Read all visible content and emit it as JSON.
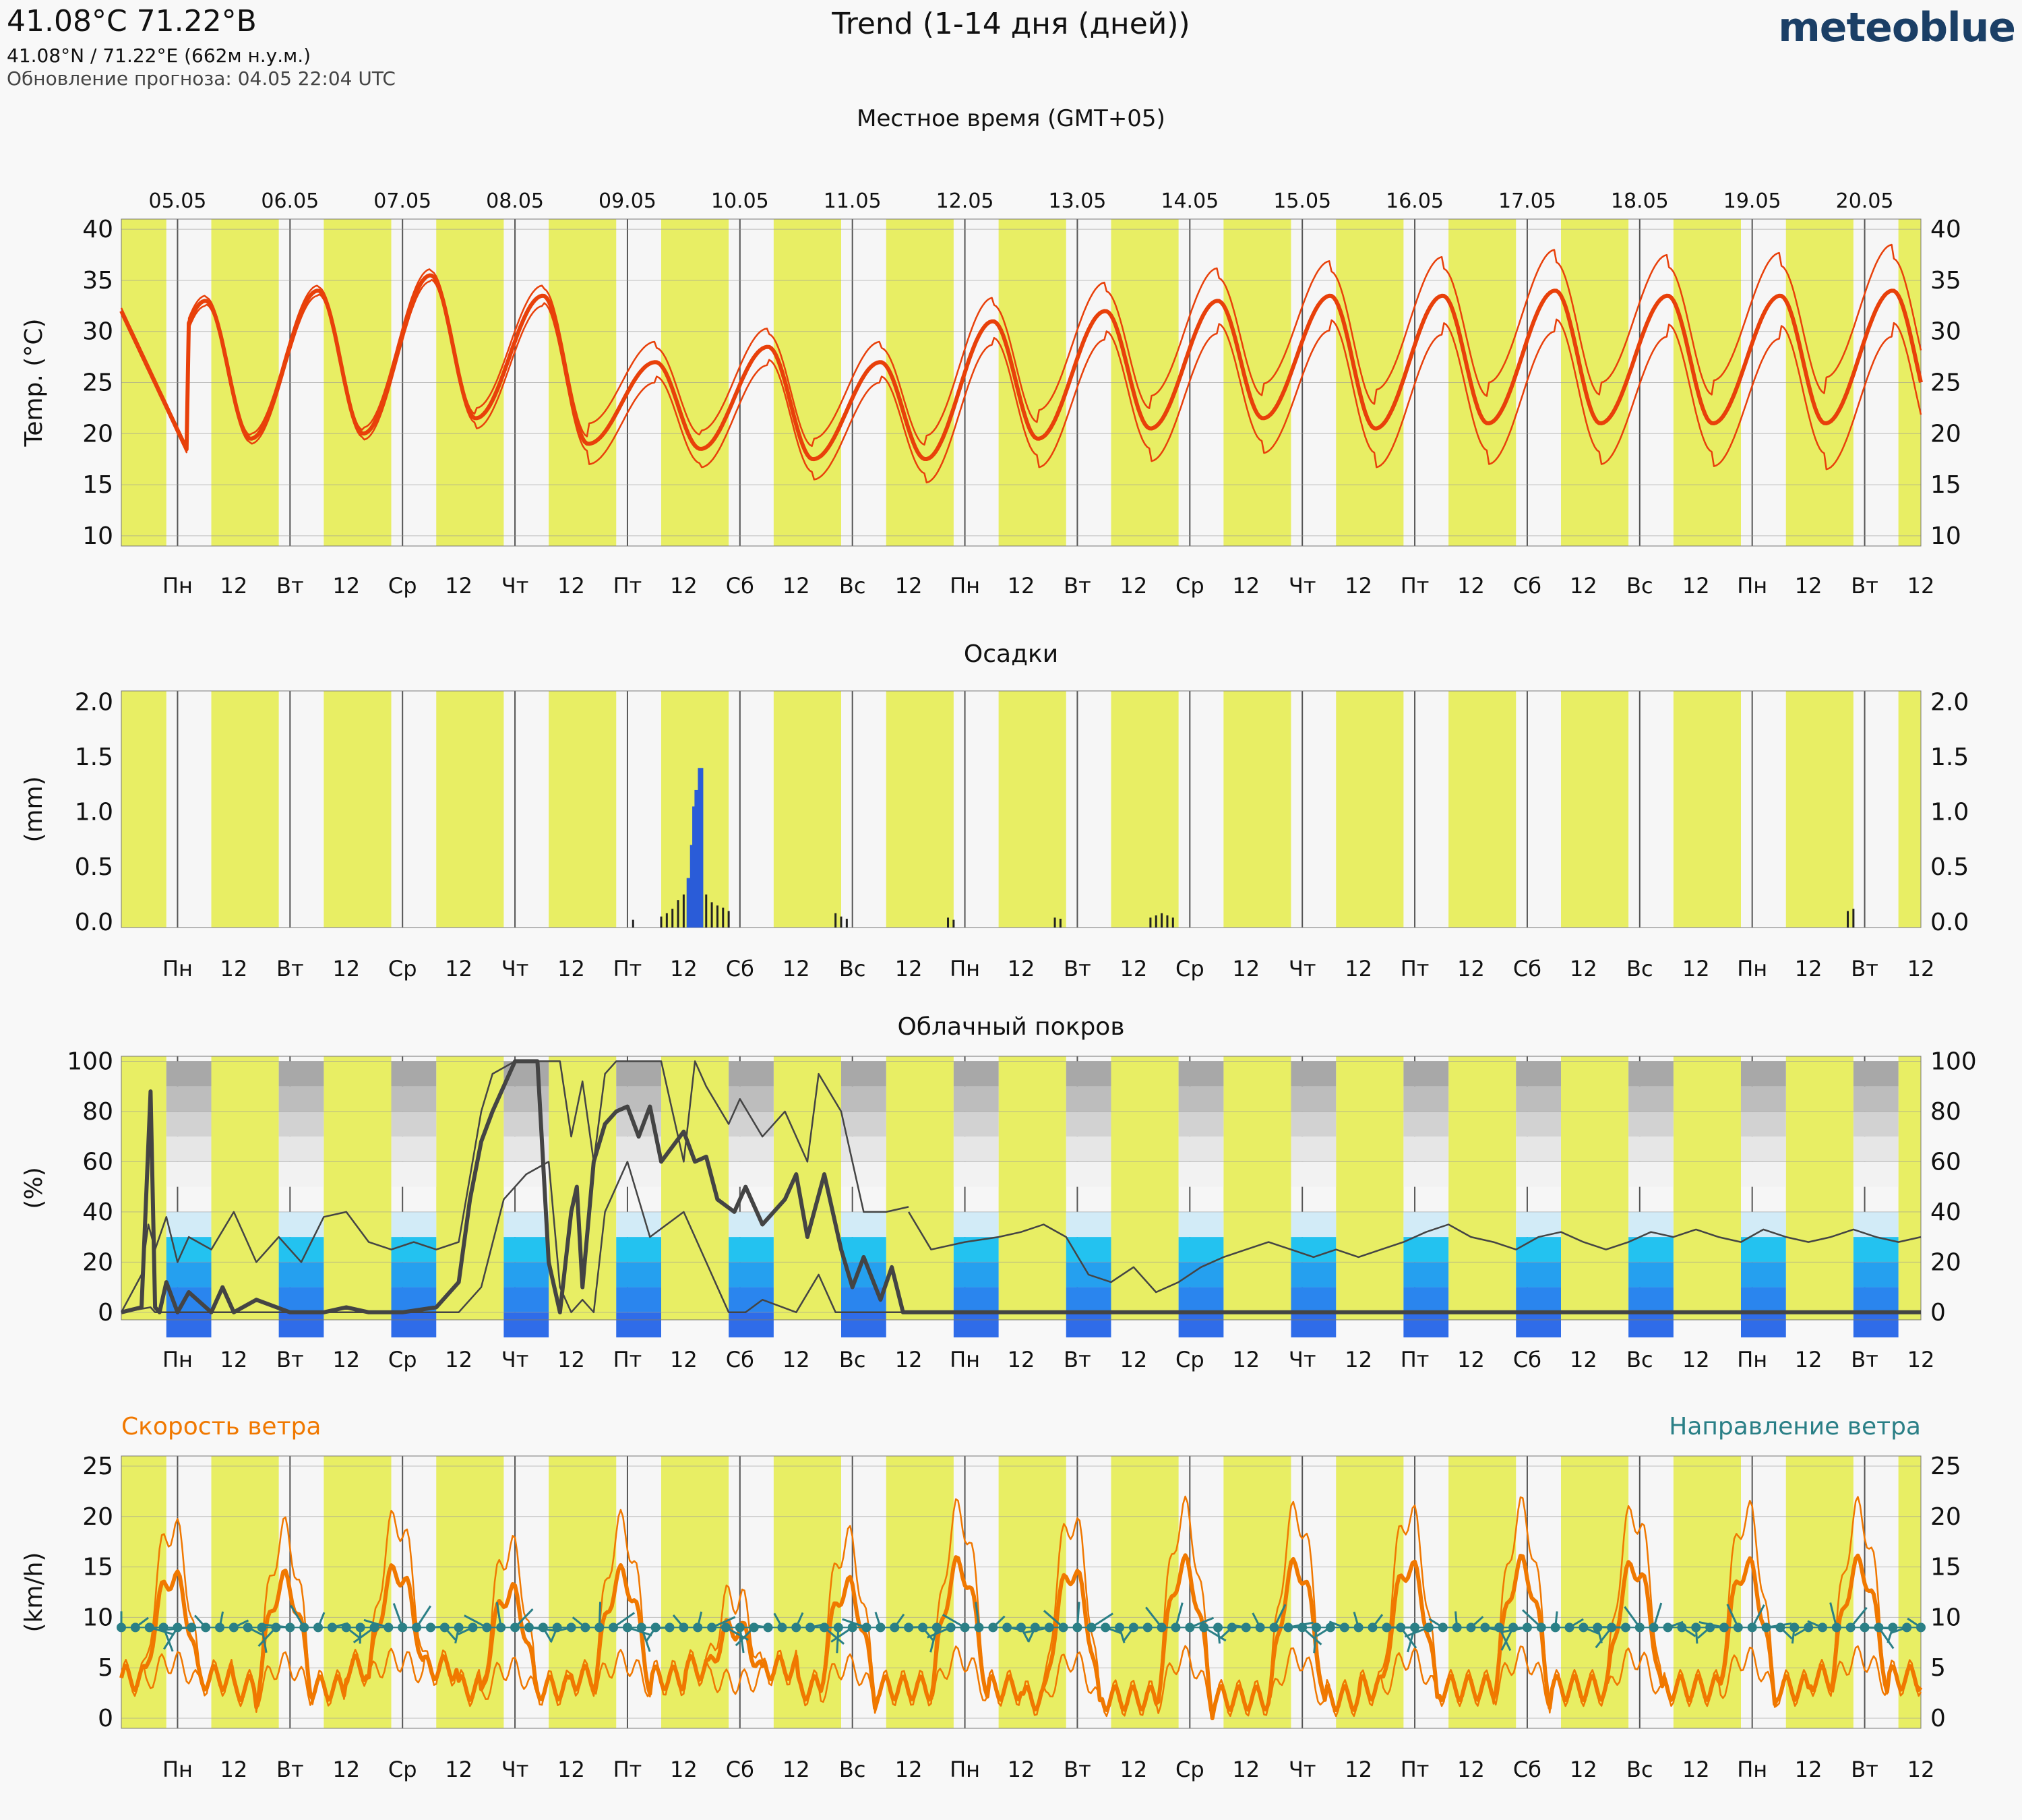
{
  "header": {
    "coord_title": "41.08°С 71.22°В",
    "coord_sub": "41.08°N / 71.22°E (662м н.у.м.)",
    "update": "Обновление прогноза: 04.05 22:04 UTC",
    "title": "Trend (1-14 дня (дней))",
    "brand": "meteoblue",
    "timezone_label": "Местное время (GMT+05)"
  },
  "dates": [
    "05.05",
    "06.05",
    "07.05",
    "08.05",
    "09.05",
    "10.05",
    "11.05",
    "12.05",
    "13.05",
    "14.05",
    "15.05",
    "16.05",
    "17.05",
    "18.05",
    "19.05",
    "20.05"
  ],
  "day_labels": [
    "Пн",
    "Вт",
    "Ср",
    "Чт",
    "Пт",
    "Сб",
    "Вс",
    "Пн",
    "Вт",
    "Ср",
    "Чт",
    "Пт",
    "Сб",
    "Вс",
    "Пн",
    "Вт"
  ],
  "noon_label": "12",
  "colors": {
    "daylight": "#e8ee64",
    "night": "#f6f6f6",
    "temperature": "#e8400a",
    "precipitation": "#2a5cd8",
    "cloud": "#444444",
    "wind_speed": "#f07800",
    "wind_dir": "#2a7f86"
  },
  "chart_data": [
    {
      "type": "line",
      "panel": "temperature",
      "ylabel": "Temp. (°C)",
      "ylim": [
        9,
        41
      ],
      "yticks": [
        10,
        15,
        20,
        25,
        30,
        35,
        40
      ],
      "x_unit": "days",
      "daily_max": [
        33,
        34,
        35.5,
        33.5,
        27,
        28.5,
        27,
        31,
        32,
        33,
        33.5,
        33.5,
        34,
        33.5,
        33.5,
        34
      ],
      "daily_min": [
        18,
        19.5,
        20,
        21.5,
        19,
        18.5,
        17.5,
        17.5,
        19.5,
        20.5,
        21.5,
        20.5,
        21,
        21,
        21,
        21
      ],
      "spread": [
        0.5,
        0.5,
        0.6,
        1,
        2,
        1.8,
        2,
        2.3,
        2.8,
        3.2,
        3.4,
        3.8,
        4,
        4,
        4.2,
        4.5
      ],
      "series": [
        {
          "role": "mean"
        },
        {
          "role": "upper"
        },
        {
          "role": "lower"
        }
      ]
    },
    {
      "type": "bar",
      "panel": "precipitation",
      "title": "Осадки",
      "ylabel": "(mm)",
      "ylim": [
        -0.05,
        2.1
      ],
      "yticks": [
        0.0,
        0.5,
        1.0,
        1.5,
        2.0
      ],
      "tick_labels": [
        "0.0",
        "0.5",
        "1.0",
        "1.5",
        "2.0"
      ],
      "x": [
        4.55,
        4.8,
        4.85,
        4.9,
        4.95,
        5.0,
        5.05,
        5.08,
        5.1,
        5.12,
        5.15,
        5.2,
        5.25,
        5.3,
        5.35,
        5.4,
        6.35,
        6.4,
        6.45,
        7.35,
        7.4,
        8.3,
        8.35,
        9.15,
        9.2,
        9.25,
        9.3,
        9.35,
        15.35,
        15.4
      ],
      "values": [
        0.02,
        0.05,
        0.08,
        0.12,
        0.2,
        0.25,
        0.4,
        0.7,
        1.05,
        1.2,
        1.4,
        0.25,
        0.18,
        0.15,
        0.13,
        0.1,
        0.08,
        0.05,
        0.03,
        0.04,
        0.02,
        0.04,
        0.03,
        0.04,
        0.06,
        0.08,
        0.06,
        0.04,
        0.1,
        0.12
      ]
    },
    {
      "type": "line",
      "panel": "cloud_cover",
      "title": "Облачный покров",
      "ylabel": "(%)",
      "ylim": [
        -3,
        102
      ],
      "yticks": [
        0,
        20,
        40,
        60,
        80,
        100
      ],
      "series": [
        {
          "name": "",
          "role": "mean",
          "x": [
            0,
            0.18,
            0.26,
            0.3,
            0.34,
            0.4,
            0.5,
            0.6,
            0.8,
            0.9,
            1.0,
            1.2,
            1.5,
            1.8,
            2.0,
            2.2,
            2.5,
            2.8,
            3.0,
            3.1,
            3.2,
            3.3,
            3.5,
            3.6,
            3.7,
            3.8,
            3.9,
            4.0,
            4.05,
            4.1,
            4.2,
            4.3,
            4.4,
            4.5,
            4.6,
            4.7,
            4.8,
            5.0,
            5.1,
            5.2,
            5.3,
            5.45,
            5.55,
            5.7,
            5.9,
            6.0,
            6.1,
            6.25,
            6.4,
            6.5,
            6.6,
            6.75,
            6.85,
            6.95,
            7.05,
            7.2,
            8,
            16
          ],
          "y": [
            0,
            2,
            88,
            2,
            0,
            12,
            0,
            8,
            0,
            10,
            0,
            5,
            0,
            0,
            2,
            0,
            0,
            2,
            12,
            45,
            68,
            80,
            100,
            100,
            100,
            20,
            0,
            40,
            50,
            10,
            60,
            75,
            80,
            82,
            70,
            82,
            60,
            72,
            60,
            62,
            45,
            40,
            50,
            35,
            45,
            55,
            30,
            55,
            25,
            10,
            22,
            5,
            18,
            0,
            0,
            0,
            0,
            0
          ]
        },
        {
          "name": "",
          "role": "upper",
          "x": [
            0,
            0.18,
            0.24,
            0.3,
            0.4,
            0.5,
            0.6,
            0.8,
            1.0,
            1.2,
            1.4,
            1.6,
            1.8,
            2.0,
            2.2,
            2.4,
            2.6,
            2.8,
            3.0,
            3.2,
            3.3,
            3.5,
            3.7,
            3.9,
            4.0,
            4.1,
            4.2,
            4.3,
            4.4,
            4.6,
            4.8,
            5.0,
            5.1,
            5.2,
            5.4,
            5.5,
            5.7,
            5.9,
            6.1,
            6.2,
            6.4,
            6.6,
            6.8,
            7.0
          ],
          "y": [
            0,
            15,
            35,
            25,
            38,
            20,
            30,
            25,
            40,
            20,
            30,
            20,
            38,
            40,
            28,
            25,
            28,
            25,
            28,
            80,
            95,
            100,
            100,
            100,
            70,
            92,
            60,
            95,
            100,
            100,
            100,
            60,
            100,
            90,
            75,
            85,
            70,
            80,
            60,
            95,
            80,
            40,
            40,
            42
          ]
        },
        {
          "name": "",
          "role": "lower",
          "x": [
            0,
            0.26,
            0.3,
            0.4,
            0.5,
            0.7,
            1.0,
            1.5,
            2.0,
            2.5,
            3.0,
            3.2,
            3.4,
            3.6,
            3.8,
            3.9,
            4.0,
            4.1,
            4.2,
            4.3,
            4.5,
            4.7,
            5.0,
            5.2,
            5.4,
            5.55,
            5.7,
            6.0,
            6.2,
            6.35,
            6.45,
            6.6,
            7.0,
            16
          ],
          "y": [
            0,
            2,
            0,
            0,
            0,
            0,
            0,
            0,
            0,
            0,
            0,
            10,
            45,
            55,
            60,
            10,
            0,
            5,
            0,
            40,
            60,
            30,
            40,
            20,
            0,
            0,
            5,
            0,
            15,
            0,
            0,
            0,
            0,
            0
          ]
        },
        {
          "name": "",
          "role": "total",
          "x": [
            7.0,
            7.2,
            7.5,
            7.8,
            8.0,
            8.2,
            8.4,
            8.6,
            8.8,
            9.0,
            9.2,
            9.4,
            9.6,
            9.8,
            10.0,
            10.2,
            10.4,
            10.6,
            10.8,
            11.0,
            11.2,
            11.4,
            11.6,
            11.8,
            12.0,
            12.2,
            12.4,
            12.6,
            12.8,
            13.0,
            13.2,
            13.4,
            13.6,
            13.8,
            14.0,
            14.2,
            14.4,
            14.6,
            14.8,
            15.0,
            15.2,
            15.4,
            15.6,
            15.8,
            16.0
          ],
          "y": [
            40,
            25,
            28,
            30,
            32,
            35,
            30,
            15,
            12,
            18,
            8,
            12,
            18,
            22,
            25,
            28,
            25,
            22,
            25,
            22,
            25,
            28,
            32,
            35,
            30,
            28,
            25,
            30,
            32,
            28,
            25,
            28,
            32,
            30,
            33,
            30,
            28,
            33,
            30,
            28,
            30,
            33,
            30,
            28,
            30
          ]
        }
      ]
    },
    {
      "type": "line",
      "panel": "wind",
      "ylabel": "(km/h)",
      "ylim": [
        -1,
        26
      ],
      "yticks": [
        0,
        5,
        10,
        15,
        20,
        25
      ],
      "series": [
        {
          "name": "Скорость ветра",
          "role": "mean_speed",
          "daily_peak": [
            14,
            13.5,
            14.5,
            12.5,
            14,
            9,
            13,
            15,
            14.5,
            15,
            15,
            15,
            15,
            15,
            15,
            15
          ],
          "daily_low": [
            3,
            2,
            4,
            2,
            3,
            4,
            2,
            2,
            1,
            1,
            1,
            2,
            2,
            2,
            2,
            3
          ]
        },
        {
          "name": "Направление ветра",
          "role": "direction_level",
          "value": 9
        }
      ]
    }
  ]
}
